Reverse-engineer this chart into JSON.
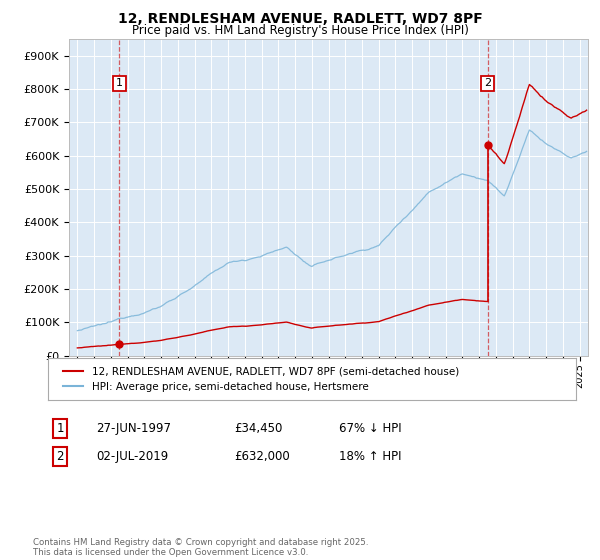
{
  "title_line1": "12, RENDLESHAM AVENUE, RADLETT, WD7 8PF",
  "title_line2": "Price paid vs. HM Land Registry's House Price Index (HPI)",
  "legend_line1": "12, RENDLESHAM AVENUE, RADLETT, WD7 8PF (semi-detached house)",
  "legend_line2": "HPI: Average price, semi-detached house, Hertsmere",
  "sale1_label": "1",
  "sale1_date": "27-JUN-1997",
  "sale1_price": "£34,450",
  "sale1_hpi": "67% ↓ HPI",
  "sale1_year": 1997.5,
  "sale1_value": 34450,
  "sale2_label": "2",
  "sale2_date": "02-JUL-2019",
  "sale2_price": "£632,000",
  "sale2_hpi": "18% ↑ HPI",
  "sale2_year": 2019.5,
  "sale2_value": 632000,
  "hpi_color": "#7ab4d8",
  "price_color": "#cc0000",
  "dashed_line_color": "#cc0000",
  "plot_bg_color": "#dce9f5",
  "ylim_max": 950000,
  "ylim_min": 0,
  "xlim_min": 1994.5,
  "xlim_max": 2025.5,
  "footer": "Contains HM Land Registry data © Crown copyright and database right 2025.\nThis data is licensed under the Open Government Licence v3.0.",
  "ylabel_ticks": [
    0,
    100000,
    200000,
    300000,
    400000,
    500000,
    600000,
    700000,
    800000,
    900000
  ],
  "ylabel_labels": [
    "£0",
    "£100K",
    "£200K",
    "£300K",
    "£400K",
    "£500K",
    "£600K",
    "£700K",
    "£800K",
    "£900K"
  ]
}
